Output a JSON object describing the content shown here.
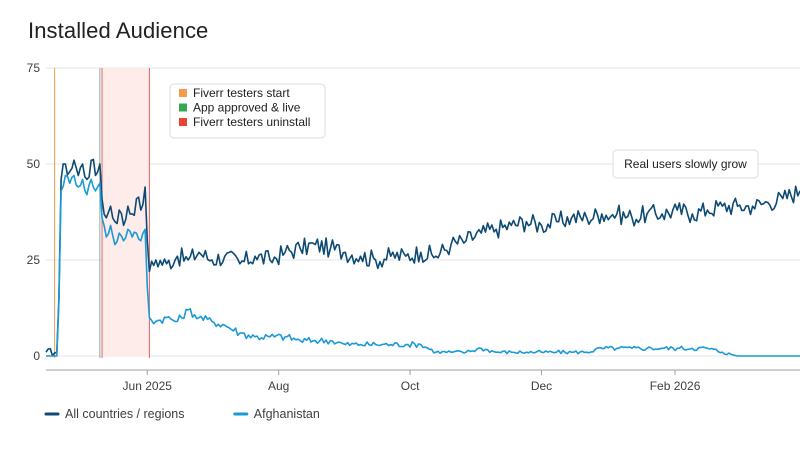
{
  "chart_data": {
    "type": "line",
    "title": "Installed Audience",
    "xlabel": "",
    "ylabel": "",
    "x_range": [
      "2025-04-15",
      "2026-03-31"
    ],
    "ylim": [
      0,
      75
    ],
    "y_ticks": [
      0,
      25,
      50,
      75
    ],
    "x_ticks": [
      {
        "label": "Jun 2025",
        "date": "2025-06-01"
      },
      {
        "label": "Aug",
        "date": "2025-08-01"
      },
      {
        "label": "Oct",
        "date": "2025-10-01"
      },
      {
        "label": "Dec",
        "date": "2025-12-01"
      },
      {
        "label": "Feb 2026",
        "date": "2026-02-01"
      }
    ],
    "grid": true,
    "legend_position": "bottom-left",
    "series": [
      {
        "name": "All countries / regions",
        "color": "#0d4a73",
        "points": [
          [
            "2025-04-15",
            1
          ],
          [
            "2025-04-20",
            1
          ],
          [
            "2025-04-21",
            15
          ],
          [
            "2025-04-22",
            46
          ],
          [
            "2025-04-24",
            50
          ],
          [
            "2025-04-26",
            48
          ],
          [
            "2025-04-28",
            51
          ],
          [
            "2025-04-30",
            47
          ],
          [
            "2025-05-02",
            50
          ],
          [
            "2025-05-04",
            46
          ],
          [
            "2025-05-06",
            51
          ],
          [
            "2025-05-08",
            47
          ],
          [
            "2025-05-10",
            50
          ],
          [
            "2025-05-11",
            41
          ],
          [
            "2025-05-13",
            36
          ],
          [
            "2025-05-15",
            39
          ],
          [
            "2025-05-17",
            35
          ],
          [
            "2025-05-19",
            38
          ],
          [
            "2025-05-21",
            34
          ],
          [
            "2025-05-23",
            39
          ],
          [
            "2025-05-25",
            37
          ],
          [
            "2025-05-27",
            41
          ],
          [
            "2025-05-29",
            38
          ],
          [
            "2025-05-31",
            44
          ],
          [
            "2025-06-01",
            30
          ],
          [
            "2025-06-02",
            22
          ],
          [
            "2025-06-05",
            25
          ],
          [
            "2025-06-10",
            24
          ],
          [
            "2025-06-15",
            26
          ],
          [
            "2025-06-20",
            25
          ],
          [
            "2025-06-25",
            27
          ],
          [
            "2025-07-01",
            25
          ],
          [
            "2025-07-07",
            26
          ],
          [
            "2025-07-14",
            24
          ],
          [
            "2025-07-21",
            26
          ],
          [
            "2025-07-28",
            25
          ],
          [
            "2025-08-04",
            27
          ],
          [
            "2025-08-11",
            28
          ],
          [
            "2025-08-18",
            29
          ],
          [
            "2025-08-25",
            28
          ],
          [
            "2025-09-01",
            27
          ],
          [
            "2025-09-08",
            26
          ],
          [
            "2025-09-15",
            25
          ],
          [
            "2025-09-22",
            26
          ],
          [
            "2025-09-29",
            26
          ],
          [
            "2025-10-06",
            27
          ],
          [
            "2025-10-13",
            26
          ],
          [
            "2025-10-20",
            29
          ],
          [
            "2025-10-27",
            30
          ],
          [
            "2025-11-03",
            32
          ],
          [
            "2025-11-10",
            33
          ],
          [
            "2025-11-17",
            34
          ],
          [
            "2025-11-24",
            35
          ],
          [
            "2025-12-01",
            34
          ],
          [
            "2025-12-08",
            35
          ],
          [
            "2025-12-15",
            36
          ],
          [
            "2025-12-22",
            36
          ],
          [
            "2025-12-29",
            37
          ],
          [
            "2026-01-05",
            37
          ],
          [
            "2026-01-12",
            36
          ],
          [
            "2026-01-19",
            37
          ],
          [
            "2026-01-26",
            37
          ],
          [
            "2026-02-02",
            38
          ],
          [
            "2026-02-09",
            37
          ],
          [
            "2026-02-16",
            38
          ],
          [
            "2026-02-23",
            39
          ],
          [
            "2026-03-02",
            39
          ],
          [
            "2026-03-09",
            39
          ],
          [
            "2026-03-16",
            40
          ],
          [
            "2026-03-23",
            41
          ],
          [
            "2026-03-31",
            43
          ]
        ]
      },
      {
        "name": "Afghanistan",
        "color": "#1a9ad6",
        "points": [
          [
            "2025-04-15",
            0
          ],
          [
            "2025-04-20",
            0
          ],
          [
            "2025-04-21",
            14
          ],
          [
            "2025-04-22",
            43
          ],
          [
            "2025-04-24",
            47
          ],
          [
            "2025-04-26",
            45
          ],
          [
            "2025-04-28",
            47
          ],
          [
            "2025-04-30",
            44
          ],
          [
            "2025-05-02",
            46
          ],
          [
            "2025-05-04",
            42
          ],
          [
            "2025-05-06",
            46
          ],
          [
            "2025-05-08",
            43
          ],
          [
            "2025-05-10",
            45
          ],
          [
            "2025-05-11",
            36
          ],
          [
            "2025-05-13",
            31
          ],
          [
            "2025-05-15",
            34
          ],
          [
            "2025-05-17",
            29
          ],
          [
            "2025-05-19",
            32
          ],
          [
            "2025-05-21",
            30
          ],
          [
            "2025-05-23",
            33
          ],
          [
            "2025-05-25",
            31
          ],
          [
            "2025-05-27",
            32
          ],
          [
            "2025-05-29",
            30
          ],
          [
            "2025-05-31",
            33
          ],
          [
            "2025-06-01",
            18
          ],
          [
            "2025-06-02",
            10
          ],
          [
            "2025-06-05",
            9
          ],
          [
            "2025-06-10",
            10
          ],
          [
            "2025-06-15",
            9
          ],
          [
            "2025-06-20",
            12
          ],
          [
            "2025-06-25",
            10
          ],
          [
            "2025-07-01",
            9
          ],
          [
            "2025-07-07",
            8
          ],
          [
            "2025-07-14",
            6
          ],
          [
            "2025-07-21",
            5
          ],
          [
            "2025-07-28",
            5
          ],
          [
            "2025-08-04",
            5
          ],
          [
            "2025-08-11",
            4
          ],
          [
            "2025-08-18",
            4
          ],
          [
            "2025-08-25",
            4
          ],
          [
            "2025-09-01",
            3
          ],
          [
            "2025-09-08",
            3
          ],
          [
            "2025-09-15",
            3
          ],
          [
            "2025-09-22",
            3
          ],
          [
            "2025-09-29",
            3
          ],
          [
            "2025-10-06",
            3
          ],
          [
            "2025-10-13",
            1
          ],
          [
            "2025-10-20",
            1
          ],
          [
            "2025-10-27",
            1
          ],
          [
            "2025-11-03",
            2
          ],
          [
            "2025-11-10",
            1
          ],
          [
            "2025-11-17",
            1
          ],
          [
            "2025-11-24",
            1
          ],
          [
            "2025-12-01",
            1
          ],
          [
            "2025-12-08",
            1
          ],
          [
            "2025-12-15",
            1
          ],
          [
            "2025-12-22",
            1
          ],
          [
            "2025-12-29",
            2
          ],
          [
            "2026-01-05",
            2
          ],
          [
            "2026-01-12",
            2
          ],
          [
            "2026-01-19",
            2
          ],
          [
            "2026-01-26",
            2
          ],
          [
            "2026-02-02",
            2
          ],
          [
            "2026-02-09",
            2
          ],
          [
            "2026-02-16",
            2
          ],
          [
            "2026-02-23",
            1
          ],
          [
            "2026-03-02",
            0
          ],
          [
            "2026-03-09",
            0
          ],
          [
            "2026-03-16",
            0
          ],
          [
            "2026-03-23",
            0
          ],
          [
            "2026-03-31",
            0
          ]
        ]
      }
    ],
    "event_markers": [
      {
        "date": "2025-04-19",
        "color": "#f39c4a",
        "label": "Fiverr testers start"
      },
      {
        "date": "2025-05-10",
        "color": "#8fae9b",
        "label": "App approved & live"
      },
      {
        "date": "2025-05-11",
        "color": "#e06666",
        "label": "Fiverr testers uninstall"
      },
      {
        "date": "2025-06-02",
        "color": "#e06666",
        "label": "Fiverr testers uninstall"
      }
    ],
    "highlight_band": {
      "start": "2025-05-11",
      "end": "2025-06-02",
      "color": "#fdecea"
    },
    "annotation_legend": [
      {
        "label": "Fiverr testers start",
        "color": "#f39c4a"
      },
      {
        "label": "App approved & live",
        "color": "#34a853"
      },
      {
        "label": "Fiverr testers uninstall",
        "color": "#ea4335"
      }
    ],
    "callout": {
      "text": "Real users slowly grow",
      "anchor_date": "2026-01-05",
      "anchor_value": 40
    }
  }
}
